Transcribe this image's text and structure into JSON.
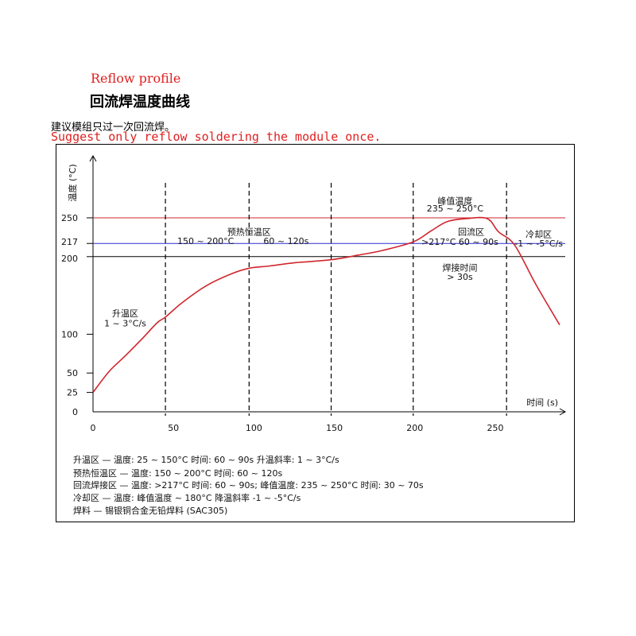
{
  "header": {
    "title_en": "Reflow profile",
    "title_cn": "回流焊温度曲线",
    "note_cn": "建议模组只过一次回流焊。",
    "note_en": "Suggest only reflow soldering the module once."
  },
  "colors": {
    "curve": "#d0262d",
    "limit_250": "#d0262d",
    "limit_217": "#2b2bd6",
    "limit_200": "#000000"
  },
  "chart_data": {
    "type": "line",
    "xlabel": "时间 (s)",
    "ylabel": "温度 (°C)",
    "xlim": [
      0,
      290
    ],
    "ylim": [
      0,
      280
    ],
    "x_ticks": [
      0,
      50,
      100,
      150,
      200,
      250
    ],
    "x_tick_labels": [
      "0",
      "50",
      "100",
      "150",
      "200",
      "250"
    ],
    "y_ticks": [
      0,
      25,
      50,
      100,
      200,
      217,
      250
    ],
    "y_tick_labels": [
      "0",
      "25",
      "50",
      "100",
      "200",
      "217",
      "250"
    ],
    "grid": false,
    "horizontal_lines": [
      {
        "y": 250,
        "color": "#d0262d"
      },
      {
        "y": 217,
        "color": "#2b2bd6"
      },
      {
        "y": 200,
        "color": "#000000"
      }
    ],
    "vertical_dashed_lines": [
      45,
      97,
      148,
      199,
      257
    ],
    "series": [
      {
        "x": [
          0,
          10,
          20,
          30,
          40,
          45,
          55,
          70,
          85,
          97,
          110,
          125,
          148,
          165,
          180,
          199,
          210,
          220,
          232,
          245,
          252,
          262,
          275,
          290
        ],
        "y": [
          25,
          52,
          72,
          93,
          115,
          122,
          140,
          162,
          177,
          185,
          188,
          192,
          196,
          202,
          208,
          219,
          233,
          245,
          249,
          249,
          232,
          215,
          165,
          112
        ]
      }
    ],
    "annotations": [
      {
        "text": "峰值温度",
        "x": 225,
        "y": 268
      },
      {
        "text": "235 ~ 250°C",
        "x": 225,
        "y": 258
      },
      {
        "text": "预热恒温区",
        "x": 97,
        "y": 228
      },
      {
        "text": "150 ~ 200°C",
        "x": 70,
        "y": 216
      },
      {
        "text": "60 ~ 120s",
        "x": 120,
        "y": 216
      },
      {
        "text": "回流区",
        "x": 235,
        "y": 228
      },
      {
        "text": ">217°C  60 ~ 90s",
        "x": 228,
        "y": 215
      },
      {
        "text": "冷却区",
        "x": 277,
        "y": 225
      },
      {
        "text": "-1 ~ -5°C/s",
        "x": 277,
        "y": 213
      },
      {
        "text": "焊接时间",
        "x": 228,
        "y": 182
      },
      {
        "text": "> 30s",
        "x": 228,
        "y": 170
      },
      {
        "text": "升温区",
        "x": 20,
        "y": 123
      },
      {
        "text": "1 ~ 3°C/s",
        "x": 20,
        "y": 110
      }
    ]
  },
  "legend": [
    "升温区 — 温度: 25 ~ 150°C 时间: 60 ~ 90s 升温斜率: 1 ~ 3°C/s",
    "预热恒温区 — 温度: 150 ~ 200°C 时间: 60 ~ 120s",
    "回流焊接区 — 温度: >217°C 时间: 60 ~ 90s; 峰值温度: 235 ~ 250°C 时间: 30 ~ 70s",
    "冷却区 — 温度: 峰值温度 ~ 180°C 降温斜率 -1 ~ -5°C/s",
    "焊料 — 锡银铜合金无铅焊料 (SAC305)"
  ]
}
